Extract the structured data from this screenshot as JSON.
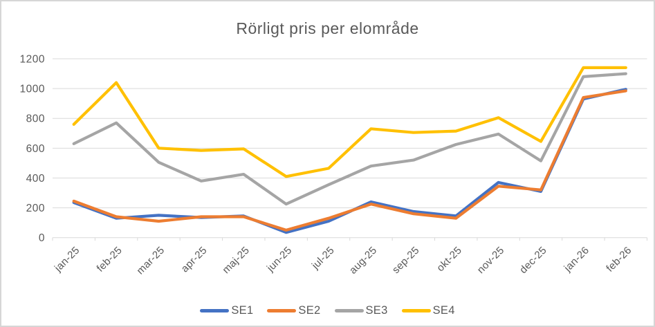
{
  "chart_data": {
    "type": "line",
    "title": "Rörligt pris per elområde",
    "categories": [
      "jan-25",
      "feb-25",
      "mar-25",
      "apr-25",
      "maj-25",
      "jun-25",
      "jul-25",
      "aug-25",
      "sep-25",
      "okt-25",
      "nov-25",
      "dec-25",
      "jan-26",
      "feb-26"
    ],
    "series": [
      {
        "name": "SE1",
        "color": "#4472C4",
        "values": [
          235,
          130,
          150,
          135,
          145,
          35,
          110,
          240,
          175,
          145,
          370,
          310,
          930,
          995
        ]
      },
      {
        "name": "SE2",
        "color": "#ED7D31",
        "values": [
          245,
          140,
          110,
          140,
          140,
          50,
          130,
          225,
          160,
          130,
          345,
          320,
          940,
          985
        ]
      },
      {
        "name": "SE3",
        "color": "#A5A5A5",
        "values": [
          630,
          770,
          505,
          380,
          425,
          225,
          355,
          480,
          520,
          625,
          695,
          515,
          1080,
          1100
        ]
      },
      {
        "name": "SE4",
        "color": "#FFC000",
        "values": [
          760,
          1040,
          600,
          585,
          595,
          410,
          465,
          730,
          705,
          715,
          805,
          645,
          1140,
          1140
        ]
      }
    ],
    "xlabel": "",
    "ylabel": "",
    "y_axis": {
      "min": 0,
      "max": 1200,
      "step": 200,
      "tick_labels": [
        "0",
        "200",
        "400",
        "600",
        "800",
        "1000",
        "1200"
      ]
    },
    "legend": {
      "position": "bottom",
      "entries": [
        "SE1",
        "SE2",
        "SE3",
        "SE4"
      ]
    },
    "grid": true,
    "styles": {
      "grid_color": "#d9d9d9",
      "axis_color": "#d9d9d9",
      "label_color": "#595959",
      "title_color": "#595959",
      "background": "#ffffff",
      "border_color": "#d6d6d6",
      "line_width": 4.2
    }
  }
}
